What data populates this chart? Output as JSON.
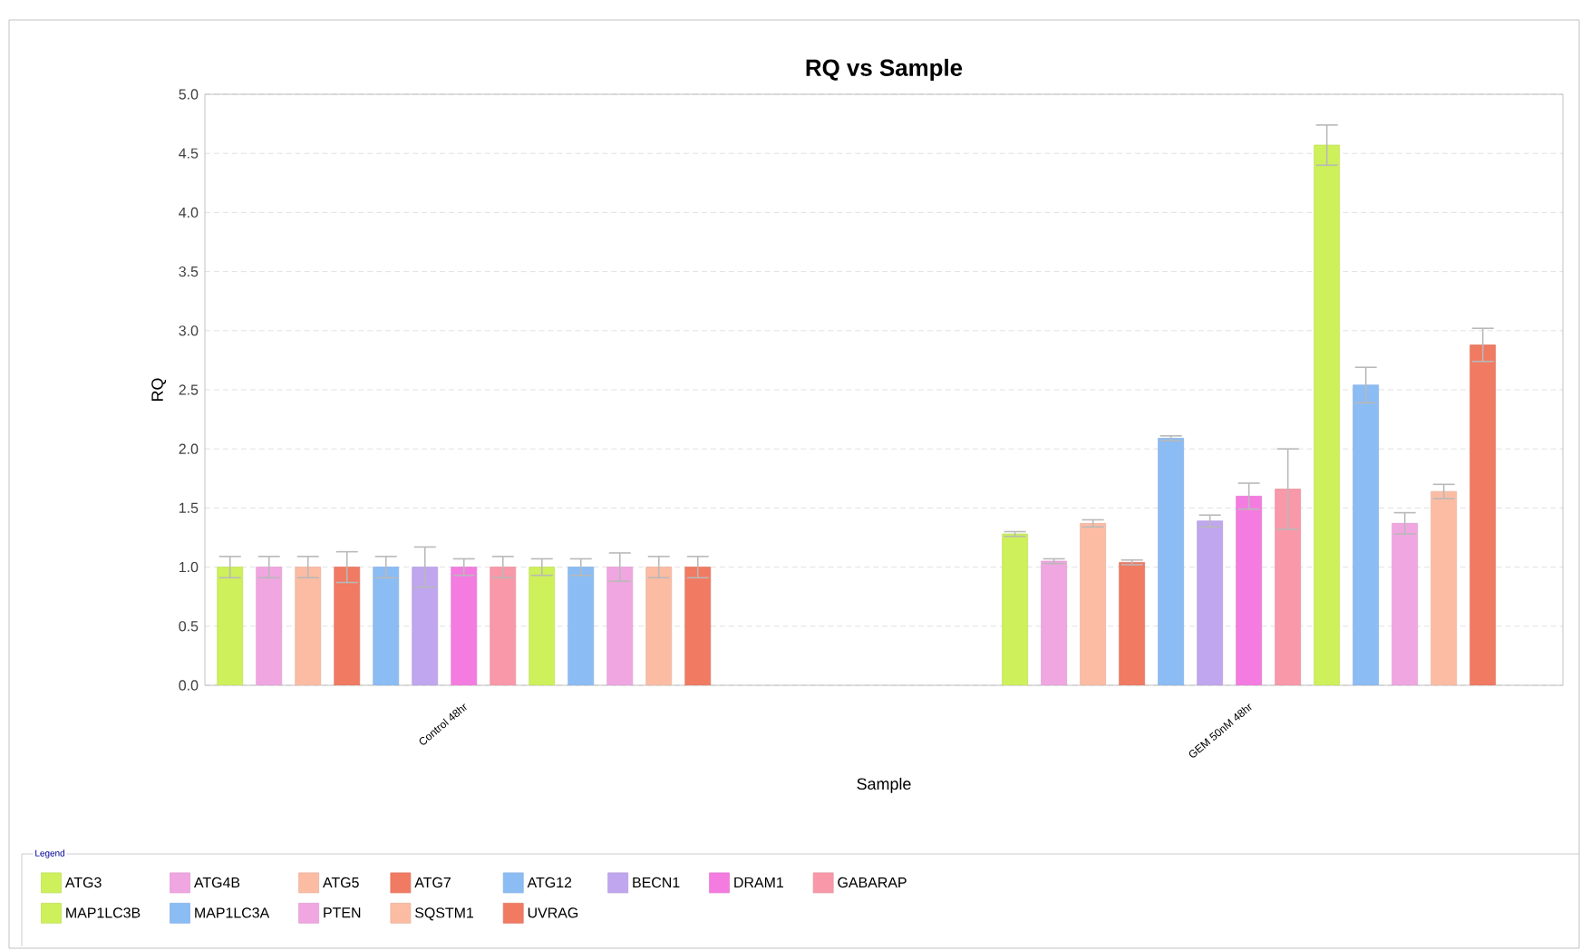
{
  "chart_data": {
    "type": "bar",
    "title": "RQ vs Sample",
    "xlabel": "Sample",
    "ylabel": "RQ",
    "legend_title": "Legend",
    "categories": [
      "Control 48hr",
      "GEM 50nM 48hr"
    ],
    "ylim": [
      0,
      5
    ],
    "yticks": [
      {
        "value": 0,
        "label": "0.0"
      },
      0.5,
      {
        "value": 1,
        "label": "1.0"
      },
      1.5,
      {
        "value": 2,
        "label": "2.0"
      },
      2.5,
      {
        "value": 3,
        "label": "3.0"
      },
      3.5,
      {
        "value": 4,
        "label": "4.0"
      },
      4.5,
      {
        "value": 5,
        "label": "5.0"
      }
    ],
    "grid": "y",
    "legend": "bottom",
    "series": [
      {
        "name": "ATG3",
        "color": "#cef05a",
        "values": [
          1.0,
          1.28
        ],
        "errors": [
          0.09,
          0.02
        ]
      },
      {
        "name": "ATG4B",
        "color": "#f0a6e0",
        "values": [
          1.0,
          1.05
        ],
        "errors": [
          0.09,
          0.02
        ]
      },
      {
        "name": "ATG5",
        "color": "#fcbca4",
        "values": [
          1.0,
          1.37
        ],
        "errors": [
          0.09,
          0.03
        ]
      },
      {
        "name": "ATG7",
        "color": "#f07a62",
        "values": [
          1.0,
          1.04
        ],
        "errors": [
          0.13,
          0.02
        ]
      },
      {
        "name": "ATG12",
        "color": "#8bbcf4",
        "values": [
          1.0,
          2.09
        ],
        "errors": [
          0.09,
          0.02
        ]
      },
      {
        "name": "BECN1",
        "color": "#c0a6ee",
        "values": [
          1.0,
          1.39
        ],
        "errors": [
          0.17,
          0.05
        ]
      },
      {
        "name": "DRAM1",
        "color": "#f47ce0",
        "values": [
          1.0,
          1.6
        ],
        "errors": [
          0.07,
          0.11
        ]
      },
      {
        "name": "GABARAP",
        "color": "#f898a8",
        "values": [
          1.0,
          1.66
        ],
        "errors": [
          0.09,
          0.34
        ]
      },
      {
        "name": "MAP1LC3B",
        "color": "#cef05a",
        "values": [
          1.0,
          4.57
        ],
        "errors": [
          0.07,
          0.17
        ]
      },
      {
        "name": "MAP1LC3A",
        "color": "#8bbcf4",
        "values": [
          1.0,
          2.54
        ],
        "errors": [
          0.07,
          0.15
        ]
      },
      {
        "name": "PTEN",
        "color": "#f0a6e0",
        "values": [
          1.0,
          1.37
        ],
        "errors": [
          0.12,
          0.09
        ]
      },
      {
        "name": "SQSTM1",
        "color": "#fcbca4",
        "values": [
          1.0,
          1.64
        ],
        "errors": [
          0.09,
          0.06
        ]
      },
      {
        "name": "UVRAG",
        "color": "#f07a62",
        "values": [
          1.0,
          2.88
        ],
        "errors": [
          0.09,
          0.14
        ]
      }
    ]
  }
}
